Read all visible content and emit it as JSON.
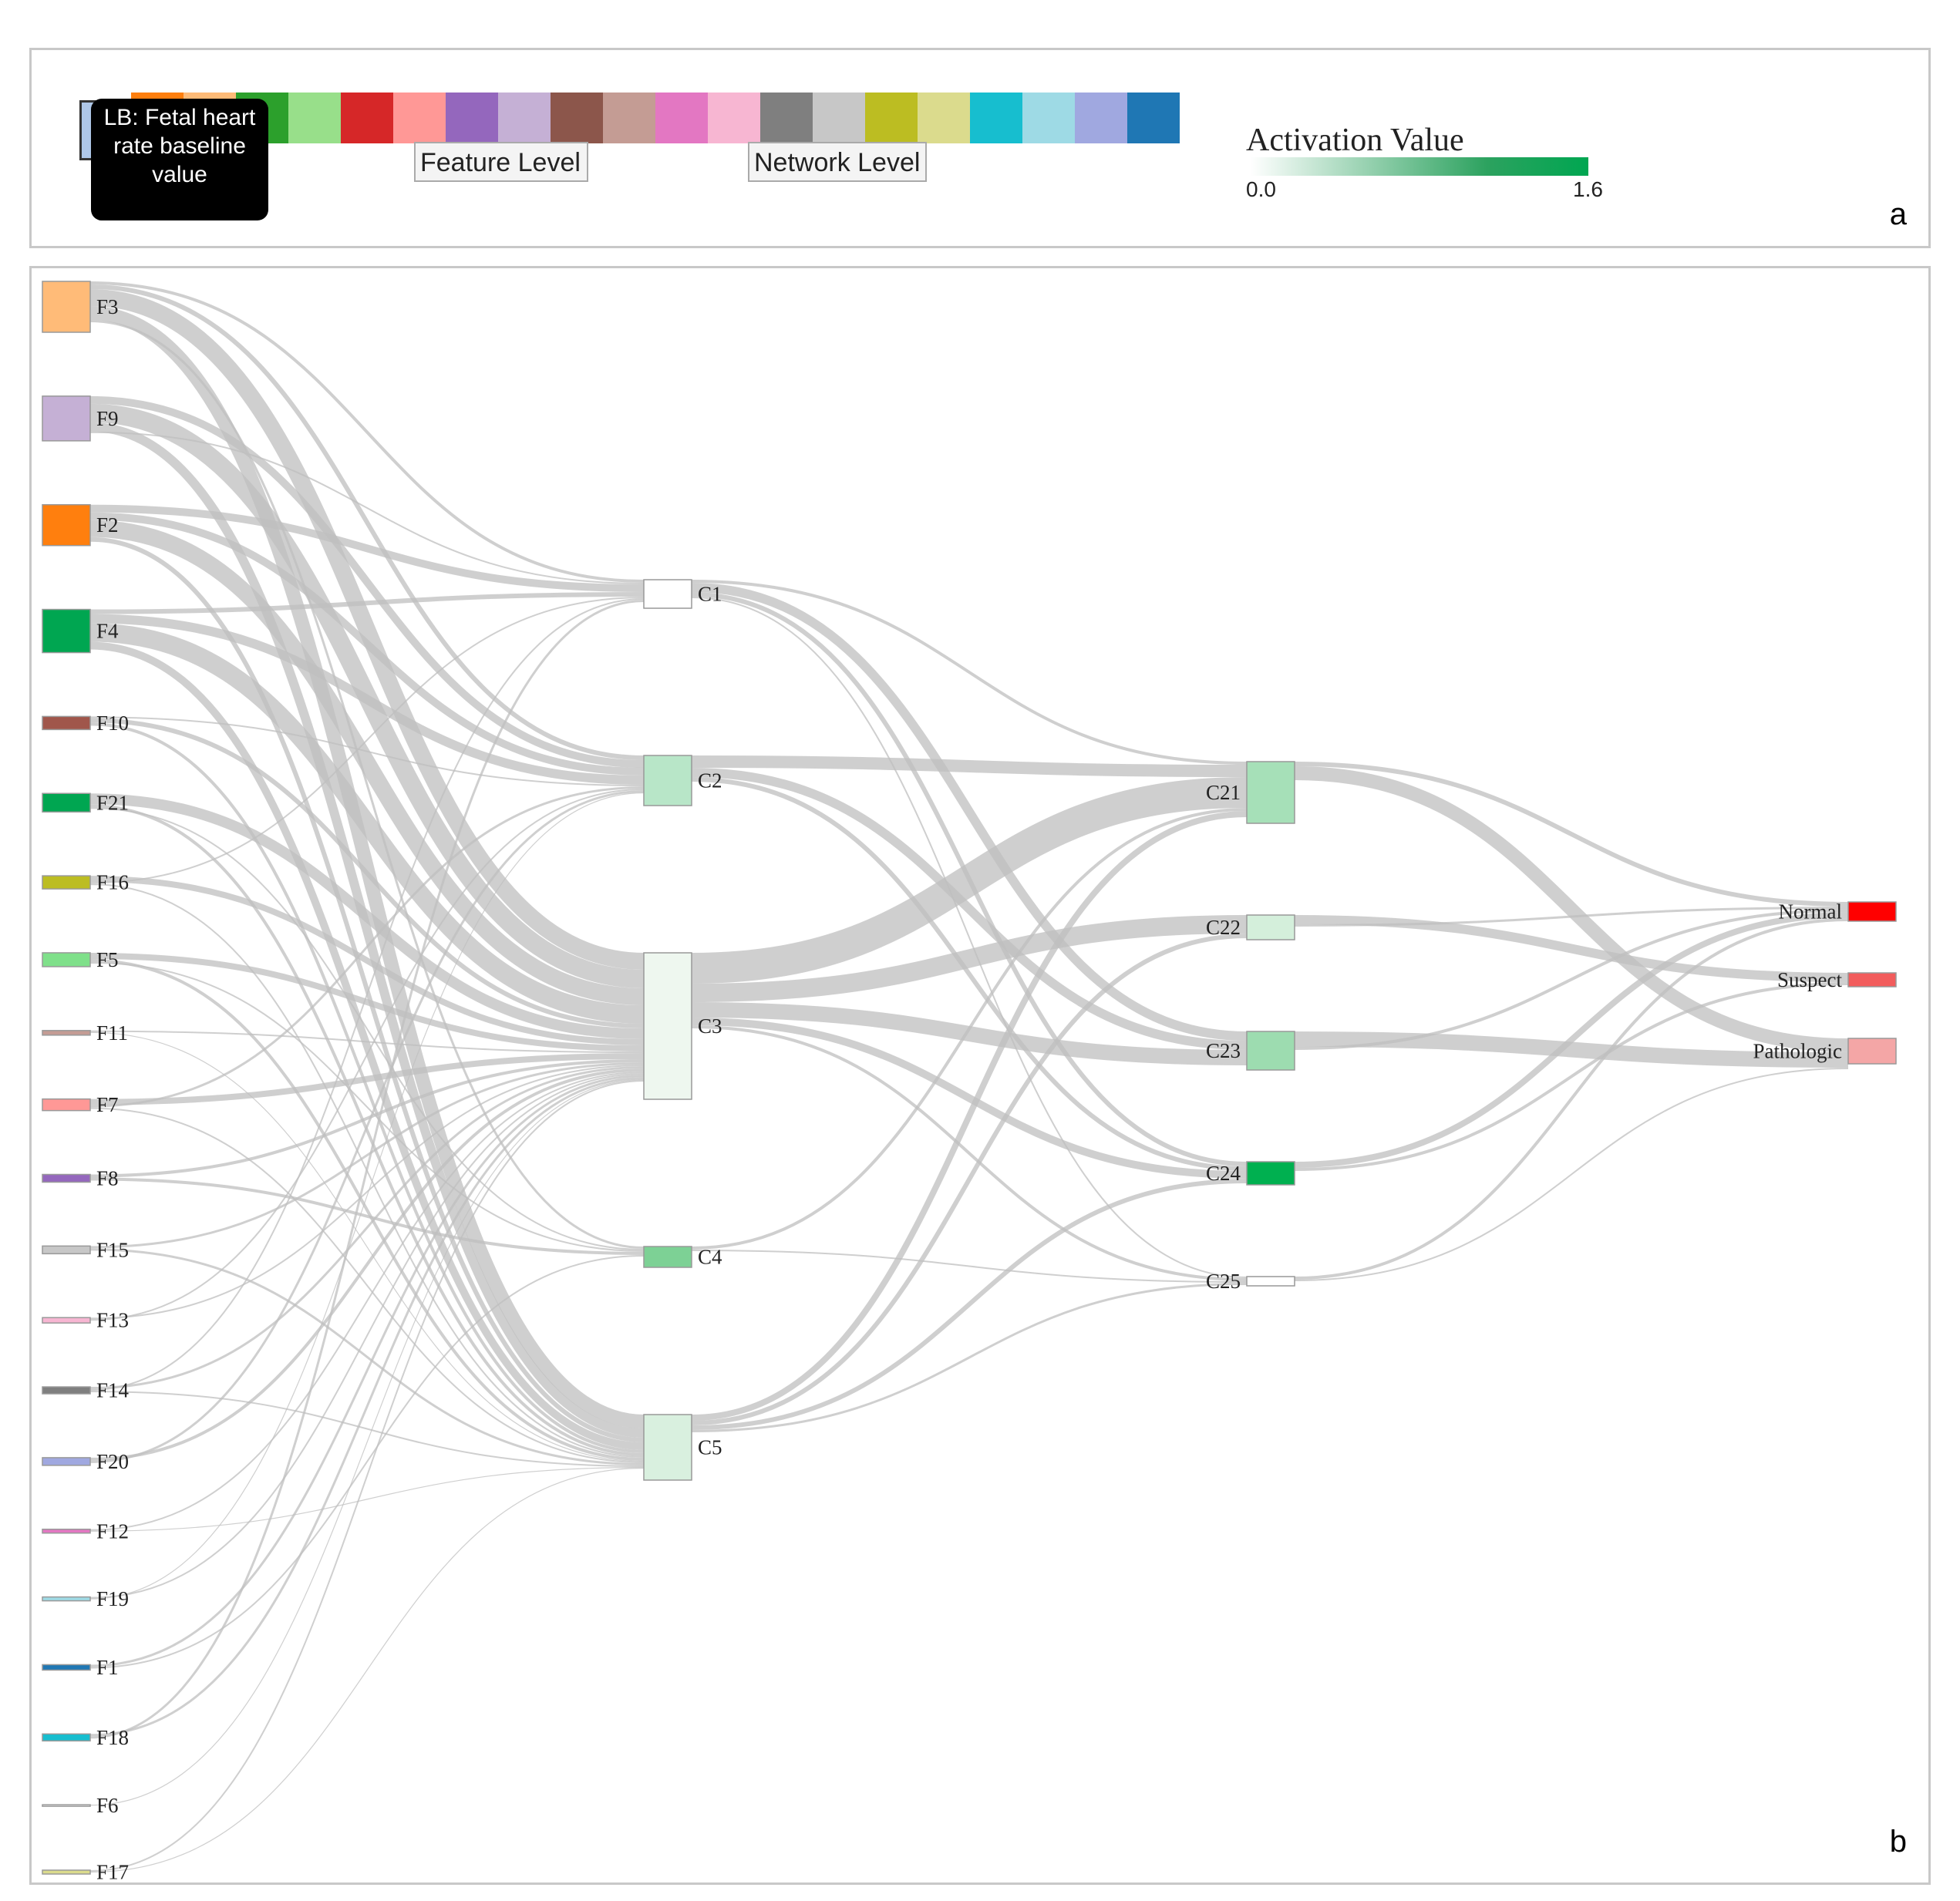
{
  "panel_a": {
    "letter": "a",
    "tooltip": {
      "lines": [
        "LB: Fetal heart",
        "rate baseline",
        "value"
      ]
    },
    "swatch_colors": [
      "#ff7f0e",
      "#ffbb78",
      "#2ca02c",
      "#98df8a",
      "#d62728",
      "#ff9896",
      "#9467bd",
      "#c5b0d5",
      "#8c564b",
      "#c49c94",
      "#e377c2",
      "#f7b6d2",
      "#7f7f7f",
      "#c7c7c7",
      "#bcbd22",
      "#dbdb8d",
      "#17becf",
      "#9edae5",
      "#a0a8e0",
      "#1f77b4"
    ],
    "buttons": {
      "feature": "Feature Level",
      "network": "Network Level"
    },
    "activation": {
      "title": "Activation Value",
      "min": "0.0",
      "max": "1.6",
      "color_low": "#ffffff",
      "color_high": "#00a651"
    }
  },
  "panel_b": {
    "letter": "b",
    "link_color": "#bfbfbf"
  },
  "diagram": {
    "type": "sankey",
    "feature_nodes": [
      {
        "id": "F3",
        "label": "F3",
        "color": "#ffbb78",
        "value": 66
      },
      {
        "id": "F9",
        "label": "F9",
        "color": "#c5b0d5",
        "value": 58
      },
      {
        "id": "F2",
        "label": "F2",
        "color": "#ff7f0e",
        "value": 53
      },
      {
        "id": "F4",
        "label": "F4",
        "color": "#00a651",
        "value": 56
      },
      {
        "id": "F10",
        "label": "F10",
        "color": "#a0564b",
        "value": 17
      },
      {
        "id": "F21",
        "label": "F21",
        "color": "#00a651",
        "value": 24
      },
      {
        "id": "F16",
        "label": "F16",
        "color": "#bcbd22",
        "value": 17
      },
      {
        "id": "F5",
        "label": "F5",
        "color": "#7fe08a",
        "value": 18
      },
      {
        "id": "F11",
        "label": "F11",
        "color": "#c49c94",
        "value": 6
      },
      {
        "id": "F7",
        "label": "F7",
        "color": "#ff9896",
        "value": 15
      },
      {
        "id": "F8",
        "label": "F8",
        "color": "#9467bd",
        "value": 10
      },
      {
        "id": "F15",
        "label": "F15",
        "color": "#c7c7c7",
        "value": 10
      },
      {
        "id": "F13",
        "label": "F13",
        "color": "#f7b6d2",
        "value": 7
      },
      {
        "id": "F14",
        "label": "F14",
        "color": "#7f7f7f",
        "value": 9
      },
      {
        "id": "F20",
        "label": "F20",
        "color": "#a0a8e0",
        "value": 10
      },
      {
        "id": "F12",
        "label": "F12",
        "color": "#e377c2",
        "value": 5
      },
      {
        "id": "F19",
        "label": "F19",
        "color": "#9edae5",
        "value": 5
      },
      {
        "id": "F1",
        "label": "F1",
        "color": "#1f77b4",
        "value": 7
      },
      {
        "id": "F18",
        "label": "F18",
        "color": "#17becf",
        "value": 9
      },
      {
        "id": "F6",
        "label": "F6",
        "color": "#ffffff",
        "value": 1
      },
      {
        "id": "F17",
        "label": "F17",
        "color": "#dbdb8d",
        "value": 5
      }
    ],
    "hidden_layer_1": [
      {
        "id": "C1",
        "label": "C1",
        "color": "#ffffff",
        "value": 37
      },
      {
        "id": "C2",
        "label": "C2",
        "color": "#b8e6c8",
        "value": 65
      },
      {
        "id": "C3",
        "label": "C3",
        "color": "#eef7ef",
        "value": 190
      },
      {
        "id": "C4",
        "label": "C4",
        "color": "#7dd195",
        "value": 27
      },
      {
        "id": "C5",
        "label": "C5",
        "color": "#d9f0df",
        "value": 85
      }
    ],
    "hidden_layer_2": [
      {
        "id": "C21",
        "label": "C21",
        "color": "#a6e0b8",
        "value": 80
      },
      {
        "id": "C22",
        "label": "C22",
        "color": "#d4efdb",
        "value": 32
      },
      {
        "id": "C23",
        "label": "C23",
        "color": "#9ddcb0",
        "value": 50
      },
      {
        "id": "C24",
        "label": "C24",
        "color": "#00b050",
        "value": 30
      },
      {
        "id": "C25",
        "label": "C25",
        "color": "#ffffff",
        "value": 12
      }
    ],
    "output_nodes": [
      {
        "id": "Normal",
        "label": "Normal",
        "color": "#ff0000",
        "value": 25
      },
      {
        "id": "Suspect",
        "label": "Suspect",
        "color": "#f25c5c",
        "value": 18
      },
      {
        "id": "Pathologic",
        "label": "Pathologic",
        "color": "#f4a6a6",
        "value": 33
      }
    ],
    "links": [
      [
        "F3",
        "C1",
        4
      ],
      [
        "F3",
        "C2",
        6
      ],
      [
        "F3",
        "C3",
        22
      ],
      [
        "F3",
        "C5",
        18
      ],
      [
        "F3",
        "C4",
        3
      ],
      [
        "F9",
        "C2",
        10
      ],
      [
        "F9",
        "C3",
        24
      ],
      [
        "F9",
        "C5",
        12
      ],
      [
        "F9",
        "C1",
        2
      ],
      [
        "F2",
        "C1",
        10
      ],
      [
        "F2",
        "C2",
        10
      ],
      [
        "F2",
        "C3",
        22
      ],
      [
        "F2",
        "C5",
        6
      ],
      [
        "F4",
        "C1",
        6
      ],
      [
        "F4",
        "C2",
        12
      ],
      [
        "F4",
        "C3",
        24
      ],
      [
        "F4",
        "C5",
        10
      ],
      [
        "F10",
        "C2",
        2
      ],
      [
        "F10",
        "C3",
        6
      ],
      [
        "F10",
        "C5",
        4
      ],
      [
        "F21",
        "C3",
        14
      ],
      [
        "F21",
        "C5",
        4
      ],
      [
        "F21",
        "C4",
        2
      ],
      [
        "F16",
        "C3",
        8
      ],
      [
        "F16",
        "C1",
        2
      ],
      [
        "F16",
        "C5",
        2
      ],
      [
        "F5",
        "C3",
        8
      ],
      [
        "F5",
        "C5",
        4
      ],
      [
        "F5",
        "C4",
        2
      ],
      [
        "F11",
        "C3",
        2
      ],
      [
        "F11",
        "C5",
        1
      ],
      [
        "F7",
        "C3",
        8
      ],
      [
        "F7",
        "C2",
        3
      ],
      [
        "F7",
        "C5",
        2
      ],
      [
        "F8",
        "C3",
        4
      ],
      [
        "F8",
        "C4",
        4
      ],
      [
        "F15",
        "C3",
        3
      ],
      [
        "F15",
        "C5",
        3
      ],
      [
        "F13",
        "C3",
        2
      ],
      [
        "F13",
        "C2",
        2
      ],
      [
        "F14",
        "C3",
        3
      ],
      [
        "F14",
        "C1",
        2
      ],
      [
        "F14",
        "C5",
        2
      ],
      [
        "F20",
        "C3",
        4
      ],
      [
        "F20",
        "C2",
        3
      ],
      [
        "F12",
        "C3",
        2
      ],
      [
        "F12",
        "C5",
        1
      ],
      [
        "F19",
        "C3",
        2
      ],
      [
        "F19",
        "C2",
        1
      ],
      [
        "F1",
        "C3",
        3
      ],
      [
        "F1",
        "C4",
        2
      ],
      [
        "F18",
        "C3",
        3
      ],
      [
        "F18",
        "C1",
        3
      ],
      [
        "F6",
        "C3",
        1
      ],
      [
        "F17",
        "C3",
        2
      ],
      [
        "F17",
        "C5",
        1
      ],
      [
        "C1",
        "C21",
        4
      ],
      [
        "C1",
        "C23",
        12
      ],
      [
        "C1",
        "C24",
        6
      ],
      [
        "C1",
        "C25",
        2
      ],
      [
        "C2",
        "C21",
        16
      ],
      [
        "C2",
        "C23",
        12
      ],
      [
        "C2",
        "C24",
        6
      ],
      [
        "C3",
        "C21",
        40
      ],
      [
        "C3",
        "C22",
        24
      ],
      [
        "C3",
        "C23",
        20
      ],
      [
        "C3",
        "C24",
        10
      ],
      [
        "C3",
        "C25",
        4
      ],
      [
        "C4",
        "C21",
        4
      ],
      [
        "C4",
        "C25",
        2
      ],
      [
        "C5",
        "C21",
        8
      ],
      [
        "C5",
        "C22",
        6
      ],
      [
        "C5",
        "C24",
        6
      ],
      [
        "C5",
        "C25",
        3
      ],
      [
        "C21",
        "Normal",
        6
      ],
      [
        "C21",
        "Pathologic",
        18
      ],
      [
        "C22",
        "Suspect",
        12
      ],
      [
        "C22",
        "Normal",
        3
      ],
      [
        "C23",
        "Pathologic",
        20
      ],
      [
        "C23",
        "Normal",
        4
      ],
      [
        "C24",
        "Normal",
        8
      ],
      [
        "C24",
        "Suspect",
        4
      ],
      [
        "C25",
        "Normal",
        4
      ],
      [
        "C25",
        "Pathologic",
        2
      ]
    ]
  }
}
